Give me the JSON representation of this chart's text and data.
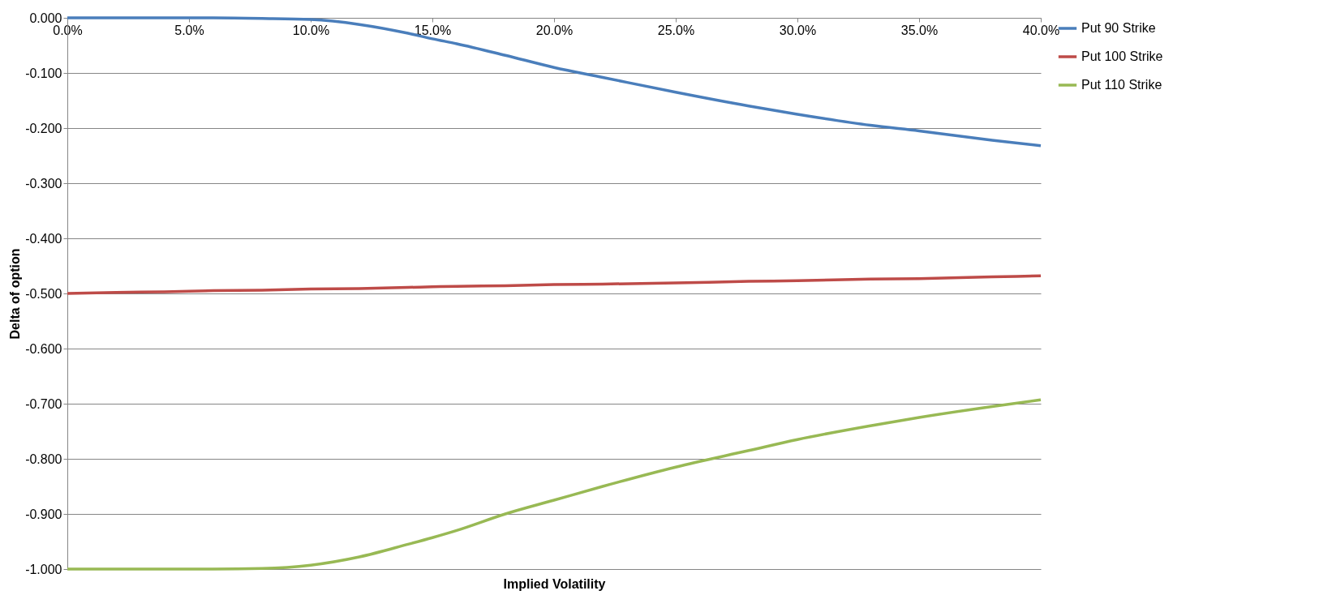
{
  "chart_data": {
    "type": "line",
    "xlabel": "Implied Volatility",
    "ylabel": "Delta of option",
    "x": [
      0,
      2,
      4,
      6,
      8,
      10,
      12,
      14,
      15,
      16,
      18,
      20,
      22,
      25,
      28,
      30,
      33,
      35,
      38,
      40
    ],
    "series": [
      {
        "name": "Put 90 Strike",
        "color": "#4a7ebb",
        "values": [
          0,
          0,
          0,
          0,
          -0.001,
          -0.003,
          -0.012,
          -0.028,
          -0.038,
          -0.047,
          -0.068,
          -0.09,
          -0.108,
          -0.135,
          -0.16,
          -0.175,
          -0.195,
          -0.205,
          -0.222,
          -0.232
        ]
      },
      {
        "name": "Put 100 Strike",
        "color": "#be4b48",
        "values": [
          -0.5,
          -0.498,
          -0.497,
          -0.495,
          -0.494,
          -0.492,
          -0.491,
          -0.489,
          -0.488,
          -0.487,
          -0.486,
          -0.484,
          -0.483,
          -0.481,
          -0.478,
          -0.477,
          -0.474,
          -0.473,
          -0.47,
          -0.468
        ]
      },
      {
        "name": "Put 110 Strike",
        "color": "#98b954",
        "values": [
          -1,
          -1,
          -1,
          -1,
          -0.999,
          -0.993,
          -0.978,
          -0.955,
          -0.943,
          -0.93,
          -0.9,
          -0.875,
          -0.85,
          -0.815,
          -0.785,
          -0.765,
          -0.74,
          -0.725,
          -0.705,
          -0.693
        ]
      }
    ],
    "xlim": [
      0,
      40
    ],
    "ylim": [
      -1,
      0
    ],
    "xticks": [
      {
        "value": 0,
        "label": "0.0%"
      },
      {
        "value": 5,
        "label": "5.0%"
      },
      {
        "value": 10,
        "label": "10.0%"
      },
      {
        "value": 15,
        "label": "15.0%"
      },
      {
        "value": 20,
        "label": "20.0%"
      },
      {
        "value": 25,
        "label": "25.0%"
      },
      {
        "value": 30,
        "label": "30.0%"
      },
      {
        "value": 35,
        "label": "35.0%"
      },
      {
        "value": 40,
        "label": "40.0%"
      }
    ],
    "yticks": [
      {
        "value": 0,
        "label": "0.000"
      },
      {
        "value": -0.1,
        "label": "-0.100"
      },
      {
        "value": -0.2,
        "label": "-0.200"
      },
      {
        "value": -0.3,
        "label": "-0.300"
      },
      {
        "value": -0.4,
        "label": "-0.400"
      },
      {
        "value": -0.5,
        "label": "-0.500"
      },
      {
        "value": -0.6,
        "label": "-0.600"
      },
      {
        "value": -0.7,
        "label": "-0.700"
      },
      {
        "value": -0.8,
        "label": "-0.800"
      },
      {
        "value": -0.9,
        "label": "-0.900"
      },
      {
        "value": -1,
        "label": "-1.000"
      }
    ],
    "grid": "y",
    "legend": "right",
    "marker": "none",
    "line_style": "solid"
  }
}
